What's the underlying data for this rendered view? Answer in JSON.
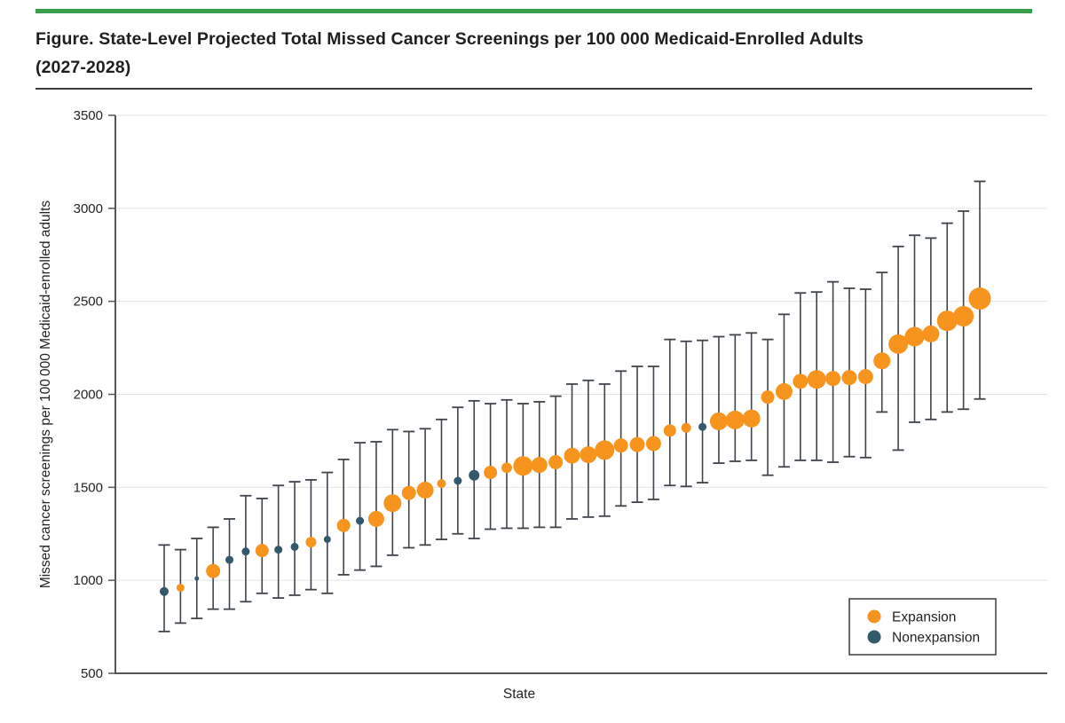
{
  "header": {
    "accent_color": "#38A04A",
    "title_line1": "Figure. State-Level Projected Total Missed Cancer Screenings per 100 000 Medicaid-Enrolled Adults",
    "title_line2": "(2027-2028)"
  },
  "chart_data": {
    "type": "scatter",
    "subtype": "dot-with-error-bars",
    "title": "State-Level Projected Total Missed Cancer Screenings per 100 000 Medicaid-Enrolled Adults (2027-2028)",
    "xlabel": "State",
    "ylabel": "Missed cancer screenings per 100 000 Medicaid-enrolled adults",
    "ylim": [
      500,
      3500
    ],
    "yticks": [
      500,
      1000,
      1500,
      2000,
      2500,
      3000,
      3500
    ],
    "grid": "horizontal",
    "legend": {
      "position": "bottom-right-inside",
      "entries": [
        {
          "label": "Expansion",
          "group": "expansion",
          "color": "#F7941E"
        },
        {
          "label": "Nonexpansion",
          "group": "nonexpansion",
          "color": "#33596C"
        }
      ]
    },
    "colors": {
      "expansion": "#F7941E",
      "nonexpansion": "#33596C",
      "bar": "#3E444B",
      "axis": "#55565A",
      "grid": "#E4E4E6"
    },
    "note": "51 states sorted ascending; marker radius reflects relative marker size in figure; lo/hi are whisker (CI) bounds read from plot",
    "points": [
      {
        "value": 940,
        "lo": 725,
        "hi": 1190,
        "group": "nonexpansion",
        "r": 5
      },
      {
        "value": 960,
        "lo": 770,
        "hi": 1165,
        "group": "expansion",
        "r": 4.5
      },
      {
        "value": 1010,
        "lo": 795,
        "hi": 1225,
        "group": "nonexpansion",
        "r": 2.5
      },
      {
        "value": 1050,
        "lo": 845,
        "hi": 1285,
        "group": "expansion",
        "r": 8
      },
      {
        "value": 1110,
        "lo": 845,
        "hi": 1330,
        "group": "nonexpansion",
        "r": 4.5
      },
      {
        "value": 1155,
        "lo": 885,
        "hi": 1455,
        "group": "nonexpansion",
        "r": 4.5
      },
      {
        "value": 1160,
        "lo": 930,
        "hi": 1440,
        "group": "expansion",
        "r": 7.5
      },
      {
        "value": 1165,
        "lo": 905,
        "hi": 1510,
        "group": "nonexpansion",
        "r": 4.5
      },
      {
        "value": 1180,
        "lo": 920,
        "hi": 1530,
        "group": "nonexpansion",
        "r": 4.5
      },
      {
        "value": 1205,
        "lo": 950,
        "hi": 1540,
        "group": "expansion",
        "r": 6
      },
      {
        "value": 1220,
        "lo": 930,
        "hi": 1580,
        "group": "nonexpansion",
        "r": 4
      },
      {
        "value": 1295,
        "lo": 1030,
        "hi": 1650,
        "group": "expansion",
        "r": 7.5
      },
      {
        "value": 1320,
        "lo": 1055,
        "hi": 1740,
        "group": "nonexpansion",
        "r": 4.5
      },
      {
        "value": 1330,
        "lo": 1075,
        "hi": 1745,
        "group": "expansion",
        "r": 9
      },
      {
        "value": 1415,
        "lo": 1135,
        "hi": 1810,
        "group": "expansion",
        "r": 10
      },
      {
        "value": 1470,
        "lo": 1175,
        "hi": 1800,
        "group": "expansion",
        "r": 8
      },
      {
        "value": 1485,
        "lo": 1190,
        "hi": 1815,
        "group": "expansion",
        "r": 9.5
      },
      {
        "value": 1520,
        "lo": 1220,
        "hi": 1865,
        "group": "expansion",
        "r": 5
      },
      {
        "value": 1535,
        "lo": 1250,
        "hi": 1930,
        "group": "nonexpansion",
        "r": 4.5
      },
      {
        "value": 1565,
        "lo": 1225,
        "hi": 1965,
        "group": "nonexpansion",
        "r": 6
      },
      {
        "value": 1580,
        "lo": 1275,
        "hi": 1950,
        "group": "expansion",
        "r": 7.5
      },
      {
        "value": 1605,
        "lo": 1280,
        "hi": 1970,
        "group": "expansion",
        "r": 6
      },
      {
        "value": 1615,
        "lo": 1280,
        "hi": 1950,
        "group": "expansion",
        "r": 11
      },
      {
        "value": 1620,
        "lo": 1285,
        "hi": 1960,
        "group": "expansion",
        "r": 9
      },
      {
        "value": 1635,
        "lo": 1285,
        "hi": 1990,
        "group": "expansion",
        "r": 8
      },
      {
        "value": 1670,
        "lo": 1330,
        "hi": 2055,
        "group": "expansion",
        "r": 9
      },
      {
        "value": 1675,
        "lo": 1340,
        "hi": 2075,
        "group": "expansion",
        "r": 9.5
      },
      {
        "value": 1700,
        "lo": 1345,
        "hi": 2055,
        "group": "expansion",
        "r": 11
      },
      {
        "value": 1725,
        "lo": 1400,
        "hi": 2125,
        "group": "expansion",
        "r": 8
      },
      {
        "value": 1730,
        "lo": 1420,
        "hi": 2150,
        "group": "expansion",
        "r": 8.5
      },
      {
        "value": 1735,
        "lo": 1435,
        "hi": 2150,
        "group": "expansion",
        "r": 8.5
      },
      {
        "value": 1805,
        "lo": 1510,
        "hi": 2295,
        "group": "expansion",
        "r": 7
      },
      {
        "value": 1820,
        "lo": 1505,
        "hi": 2285,
        "group": "expansion",
        "r": 5.5
      },
      {
        "value": 1825,
        "lo": 1525,
        "hi": 2290,
        "group": "nonexpansion",
        "r": 4.5
      },
      {
        "value": 1855,
        "lo": 1630,
        "hi": 2310,
        "group": "expansion",
        "r": 10
      },
      {
        "value": 1862,
        "lo": 1640,
        "hi": 2320,
        "group": "expansion",
        "r": 10.5
      },
      {
        "value": 1870,
        "lo": 1645,
        "hi": 2330,
        "group": "expansion",
        "r": 10
      },
      {
        "value": 1985,
        "lo": 1565,
        "hi": 2295,
        "group": "expansion",
        "r": 7.5
      },
      {
        "value": 2015,
        "lo": 1610,
        "hi": 2430,
        "group": "expansion",
        "r": 9.5
      },
      {
        "value": 2070,
        "lo": 1645,
        "hi": 2545,
        "group": "expansion",
        "r": 8.5
      },
      {
        "value": 2080,
        "lo": 1645,
        "hi": 2550,
        "group": "expansion",
        "r": 10.5
      },
      {
        "value": 2085,
        "lo": 1635,
        "hi": 2605,
        "group": "expansion",
        "r": 8.5
      },
      {
        "value": 2090,
        "lo": 1665,
        "hi": 2570,
        "group": "expansion",
        "r": 8.5
      },
      {
        "value": 2095,
        "lo": 1660,
        "hi": 2565,
        "group": "expansion",
        "r": 8.5
      },
      {
        "value": 2180,
        "lo": 1905,
        "hi": 2655,
        "group": "expansion",
        "r": 9.5
      },
      {
        "value": 2270,
        "lo": 1700,
        "hi": 2795,
        "group": "expansion",
        "r": 11
      },
      {
        "value": 2310,
        "lo": 1850,
        "hi": 2855,
        "group": "expansion",
        "r": 11
      },
      {
        "value": 2325,
        "lo": 1865,
        "hi": 2840,
        "group": "expansion",
        "r": 9.5
      },
      {
        "value": 2395,
        "lo": 1905,
        "hi": 2920,
        "group": "expansion",
        "r": 11.5
      },
      {
        "value": 2420,
        "lo": 1920,
        "hi": 2985,
        "group": "expansion",
        "r": 11.5
      },
      {
        "value": 2515,
        "lo": 1975,
        "hi": 3145,
        "group": "expansion",
        "r": 12.5
      }
    ]
  }
}
